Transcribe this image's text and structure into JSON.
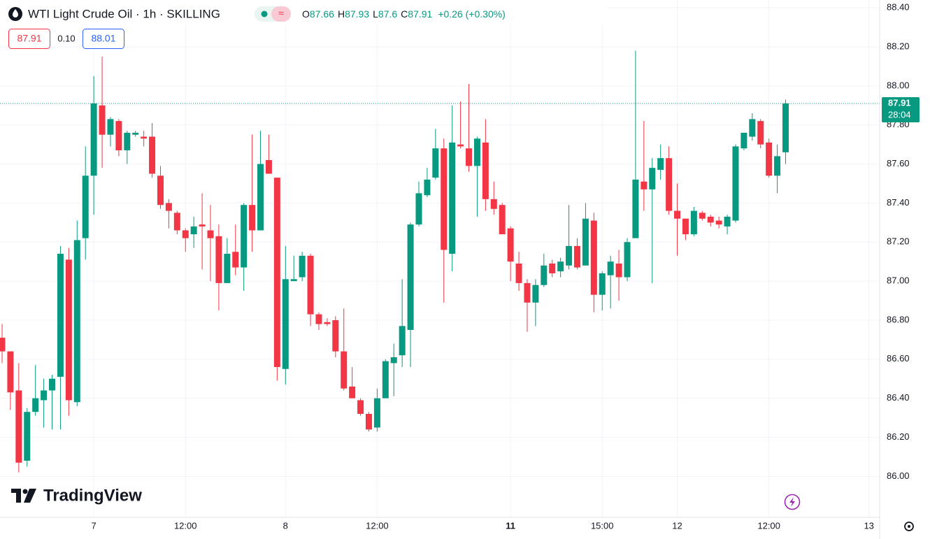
{
  "header": {
    "title": "WTI Light Crude Oil · 1h · SKILLING",
    "legend": [
      {
        "label": "O",
        "value": 87.66
      },
      {
        "label": "H",
        "value": 87.93
      },
      {
        "label": "L",
        "value": 87.6
      },
      {
        "label": "C",
        "value": 87.91
      }
    ],
    "change": "+0.26 (+0.30%)",
    "bid": "87.91",
    "spread": "0.10",
    "ask": "88.01"
  },
  "logo": "TradingView",
  "chart_data": {
    "type": "candlestick",
    "up_color": "#089981",
    "down_color": "#f23645",
    "grid": true,
    "ylim": [
      85.79,
      88.44
    ],
    "yticks": [
      {
        "value": 86.0,
        "label": "86.00"
      },
      {
        "value": 86.2,
        "label": "86.20"
      },
      {
        "value": 86.4,
        "label": "86.40"
      },
      {
        "value": 86.6,
        "label": "86.60"
      },
      {
        "value": 86.8,
        "label": "86.80"
      },
      {
        "value": 87.0,
        "label": "87.00"
      },
      {
        "value": 87.2,
        "label": "87.20"
      },
      {
        "value": 87.4,
        "label": "87.40"
      },
      {
        "value": 87.6,
        "label": "87.60"
      },
      {
        "value": 87.8,
        "label": "87.80"
      },
      {
        "value": 88.0,
        "label": "88.00"
      },
      {
        "value": 88.2,
        "label": "88.20"
      },
      {
        "value": 88.4,
        "label": "88.40"
      }
    ],
    "last_price": 87.91,
    "last_price_label": "87.91",
    "countdown": "28:04",
    "categories": [
      null,
      null,
      null,
      null,
      null,
      null,
      null,
      null,
      null,
      null,
      null,
      "7",
      null,
      null,
      null,
      null,
      null,
      null,
      null,
      null,
      null,
      null,
      "12:00",
      null,
      null,
      null,
      null,
      null,
      null,
      null,
      null,
      null,
      null,
      null,
      "8",
      null,
      null,
      null,
      null,
      null,
      null,
      null,
      null,
      null,
      null,
      "12:00",
      null,
      null,
      null,
      null,
      null,
      null,
      null,
      null,
      null,
      null,
      null,
      null,
      null,
      null,
      null,
      "11",
      null,
      null,
      null,
      null,
      null,
      null,
      null,
      null,
      null,
      null,
      "15:00",
      null,
      null,
      null,
      null,
      null,
      null,
      null,
      null,
      "12",
      null,
      null,
      null,
      null,
      null,
      null,
      null,
      null,
      null,
      null,
      "12:00",
      null,
      null,
      null,
      null,
      null,
      null,
      null,
      null,
      null,
      null,
      null,
      "13"
    ],
    "open": [
      86.71,
      86.64,
      86.44,
      86.08,
      86.33,
      86.39,
      86.44,
      86.51,
      87.11,
      86.38,
      87.22,
      87.54,
      87.9,
      87.75,
      87.82,
      87.67,
      87.75,
      87.74,
      87.74,
      87.54,
      87.4,
      87.35,
      87.26,
      87.24,
      87.29,
      87.26,
      87.23,
      86.99,
      87.15,
      87.07,
      87.39,
      87.26,
      87.62,
      87.53,
      86.55,
      87.0,
      87.02,
      87.13,
      86.83,
      86.79,
      86.8,
      86.64,
      86.46,
      86.39,
      86.32,
      86.25,
      86.4,
      86.58,
      86.62,
      86.75,
      87.29,
      87.44,
      87.53,
      87.68,
      87.14,
      87.7,
      87.68,
      87.59,
      87.71,
      87.42,
      87.39,
      87.27,
      87.09,
      86.99,
      86.89,
      86.98,
      87.09,
      87.05,
      87.08,
      87.18,
      87.08,
      87.31,
      86.93,
      87.03,
      87.09,
      87.02,
      87.22,
      87.51,
      87.47,
      87.57,
      87.63,
      87.36,
      87.32,
      87.24,
      87.35,
      87.33,
      87.31,
      87.28,
      87.31,
      87.68,
      87.74,
      87.82,
      87.71,
      87.54,
      87.66,
      null,
      null,
      null,
      null,
      null,
      null,
      null,
      null,
      null,
      null
    ],
    "high": [
      86.78,
      86.64,
      86.58,
      86.35,
      86.57,
      86.5,
      86.52,
      87.18,
      87.17,
      87.31,
      87.69,
      88.05,
      88.15,
      87.84,
      87.83,
      87.77,
      87.77,
      87.77,
      87.81,
      87.59,
      87.42,
      87.36,
      87.27,
      87.33,
      87.45,
      87.39,
      87.29,
      87.22,
      87.29,
      87.4,
      87.75,
      87.77,
      87.75,
      87.53,
      87.18,
      87.13,
      87.15,
      87.14,
      86.84,
      86.81,
      86.82,
      86.86,
      86.56,
      86.4,
      86.33,
      86.45,
      86.6,
      86.68,
      87.01,
      87.3,
      87.51,
      87.58,
      87.78,
      87.73,
      87.9,
      87.92,
      88.01,
      87.74,
      87.83,
      87.51,
      87.4,
      87.28,
      87.15,
      87.01,
      87.01,
      87.14,
      87.11,
      87.12,
      87.39,
      87.22,
      87.4,
      87.35,
      87.05,
      87.13,
      87.16,
      87.22,
      88.18,
      87.82,
      87.63,
      87.7,
      87.69,
      87.5,
      87.32,
      87.38,
      87.36,
      87.34,
      87.33,
      87.34,
      87.7,
      87.76,
      87.86,
      87.83,
      87.73,
      87.7,
      87.93,
      null,
      null,
      null,
      null,
      null,
      null,
      null,
      null,
      null,
      null
    ],
    "low": [
      86.58,
      86.34,
      86.02,
      86.05,
      86.31,
      86.25,
      86.24,
      86.24,
      86.31,
      86.36,
      87.11,
      87.34,
      87.58,
      87.69,
      87.64,
      87.6,
      87.74,
      87.69,
      87.53,
      87.37,
      87.27,
      87.24,
      87.15,
      87.17,
      87.06,
      87.0,
      86.85,
      86.99,
      87.03,
      86.95,
      87.15,
      87.26,
      87.55,
      86.49,
      86.47,
      87.0,
      87.0,
      86.77,
      86.75,
      86.77,
      86.61,
      86.44,
      86.4,
      86.31,
      86.23,
      86.23,
      86.4,
      86.41,
      86.56,
      86.56,
      87.28,
      87.43,
      87.52,
      86.89,
      87.05,
      87.68,
      87.56,
      87.33,
      87.36,
      87.34,
      87.24,
      87.0,
      86.95,
      86.74,
      86.77,
      86.97,
      87.02,
      87.02,
      87.06,
      87.06,
      87.08,
      86.84,
      86.85,
      86.86,
      86.9,
      87.0,
      87.22,
      87.36,
      86.99,
      87.52,
      87.34,
      87.13,
      87.21,
      87.23,
      87.31,
      87.28,
      87.27,
      87.24,
      87.3,
      87.67,
      87.72,
      87.68,
      87.53,
      87.45,
      87.6,
      null,
      null,
      null,
      null,
      null,
      null,
      null,
      null,
      null,
      null
    ],
    "close": [
      86.64,
      86.43,
      86.07,
      86.33,
      86.4,
      86.44,
      86.5,
      87.14,
      86.39,
      87.21,
      87.54,
      87.91,
      87.75,
      87.83,
      87.67,
      87.76,
      87.76,
      87.73,
      87.55,
      87.39,
      87.36,
      87.26,
      87.22,
      87.28,
      87.28,
      87.22,
      86.99,
      87.14,
      87.07,
      87.39,
      87.26,
      87.6,
      87.55,
      86.56,
      87.01,
      87.01,
      87.13,
      86.83,
      86.78,
      86.78,
      86.64,
      86.45,
      86.4,
      86.32,
      86.24,
      86.4,
      86.59,
      86.61,
      86.77,
      87.29,
      87.45,
      87.52,
      87.68,
      87.16,
      87.71,
      87.69,
      87.59,
      87.73,
      87.42,
      87.37,
      87.24,
      87.1,
      86.99,
      86.89,
      86.98,
      87.08,
      87.04,
      87.1,
      87.18,
      87.07,
      87.32,
      86.93,
      87.04,
      87.1,
      87.02,
      87.2,
      87.52,
      87.47,
      87.58,
      87.63,
      87.36,
      87.32,
      87.24,
      87.36,
      87.32,
      87.3,
      87.29,
      87.33,
      87.69,
      87.76,
      87.83,
      87.7,
      87.54,
      87.64,
      87.91,
      null,
      null,
      null,
      null,
      null,
      null,
      null,
      null,
      null,
      null
    ]
  }
}
